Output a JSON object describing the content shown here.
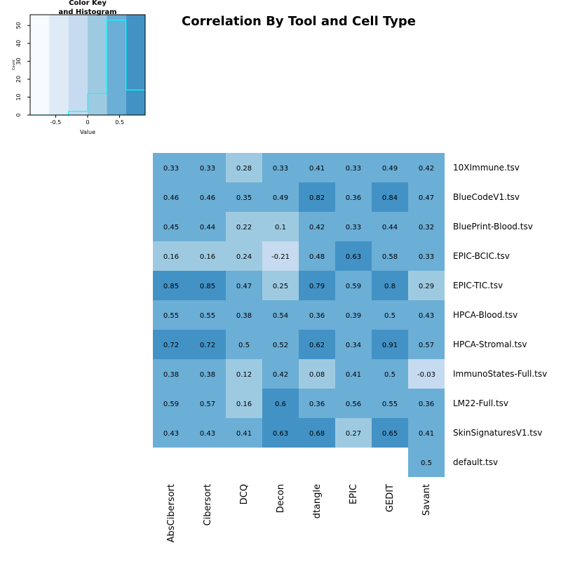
{
  "colors": {
    "palette": [
      "#F7FBFF",
      "#DEEBF7",
      "#C6DBEF",
      "#9ECAE1",
      "#6BAED6",
      "#4292C6"
    ],
    "histogram_line": "#00FFFF"
  },
  "chart_data": [
    {
      "type": "heatmap",
      "title": "Correlation By Tool and Cell Type",
      "columns": [
        "AbsCibersort",
        "Cibersort",
        "DCQ",
        "Decon",
        "dtangle",
        "EPIC",
        "GEDIT",
        "Savant"
      ],
      "rows": [
        "10XImmune.tsv",
        "BlueCodeV1.tsv",
        "BluePrint-Blood.tsv",
        "EPIC-BCIC.tsv",
        "EPIC-TIC.tsv",
        "HPCA-Blood.tsv",
        "HPCA-Stromal.tsv",
        "ImmunoStates-Full.tsv",
        "LM22-Full.tsv",
        "SkinSignaturesV1.tsv",
        "default.tsv"
      ],
      "values": [
        [
          0.33,
          0.33,
          0.28,
          0.33,
          0.41,
          0.33,
          0.49,
          0.42
        ],
        [
          0.46,
          0.46,
          0.35,
          0.49,
          0.82,
          0.36,
          0.84,
          0.47
        ],
        [
          0.45,
          0.44,
          0.22,
          0.1,
          0.42,
          0.33,
          0.44,
          0.32
        ],
        [
          0.16,
          0.16,
          0.24,
          -0.21,
          0.48,
          0.63,
          0.58,
          0.33
        ],
        [
          0.85,
          0.85,
          0.47,
          0.25,
          0.79,
          0.59,
          0.8,
          0.29
        ],
        [
          0.55,
          0.55,
          0.38,
          0.54,
          0.36,
          0.39,
          0.5,
          0.43
        ],
        [
          0.72,
          0.72,
          0.5,
          0.52,
          0.62,
          0.34,
          0.91,
          0.57
        ],
        [
          0.38,
          0.38,
          0.12,
          0.42,
          0.08,
          0.41,
          0.5,
          -0.03
        ],
        [
          0.59,
          0.57,
          0.16,
          0.6,
          0.36,
          0.56,
          0.55,
          0.36
        ],
        [
          0.43,
          0.43,
          0.41,
          0.63,
          0.68,
          0.27,
          0.65,
          0.41
        ],
        [
          null,
          null,
          null,
          null,
          null,
          null,
          null,
          0.5
        ]
      ],
      "color_breaks": [
        -0.9,
        -0.6,
        -0.3,
        0,
        0.3,
        0.6,
        0.9
      ]
    },
    {
      "type": "bar",
      "title": "Color Key\nand Histogram",
      "xlabel": "Value",
      "ylabel": "Count",
      "bins": [
        -0.9,
        -0.6,
        -0.3,
        0,
        0.3,
        0.6,
        0.9
      ],
      "counts": [
        0,
        0,
        2,
        12,
        53,
        14
      ],
      "xlim": [
        -0.9,
        0.9
      ],
      "ylim": [
        0,
        56
      ],
      "x_ticks": [
        "-0.5",
        "0",
        "0.5"
      ],
      "y_ticks": [
        "0",
        "10",
        "20",
        "30",
        "40",
        "50"
      ]
    }
  ]
}
